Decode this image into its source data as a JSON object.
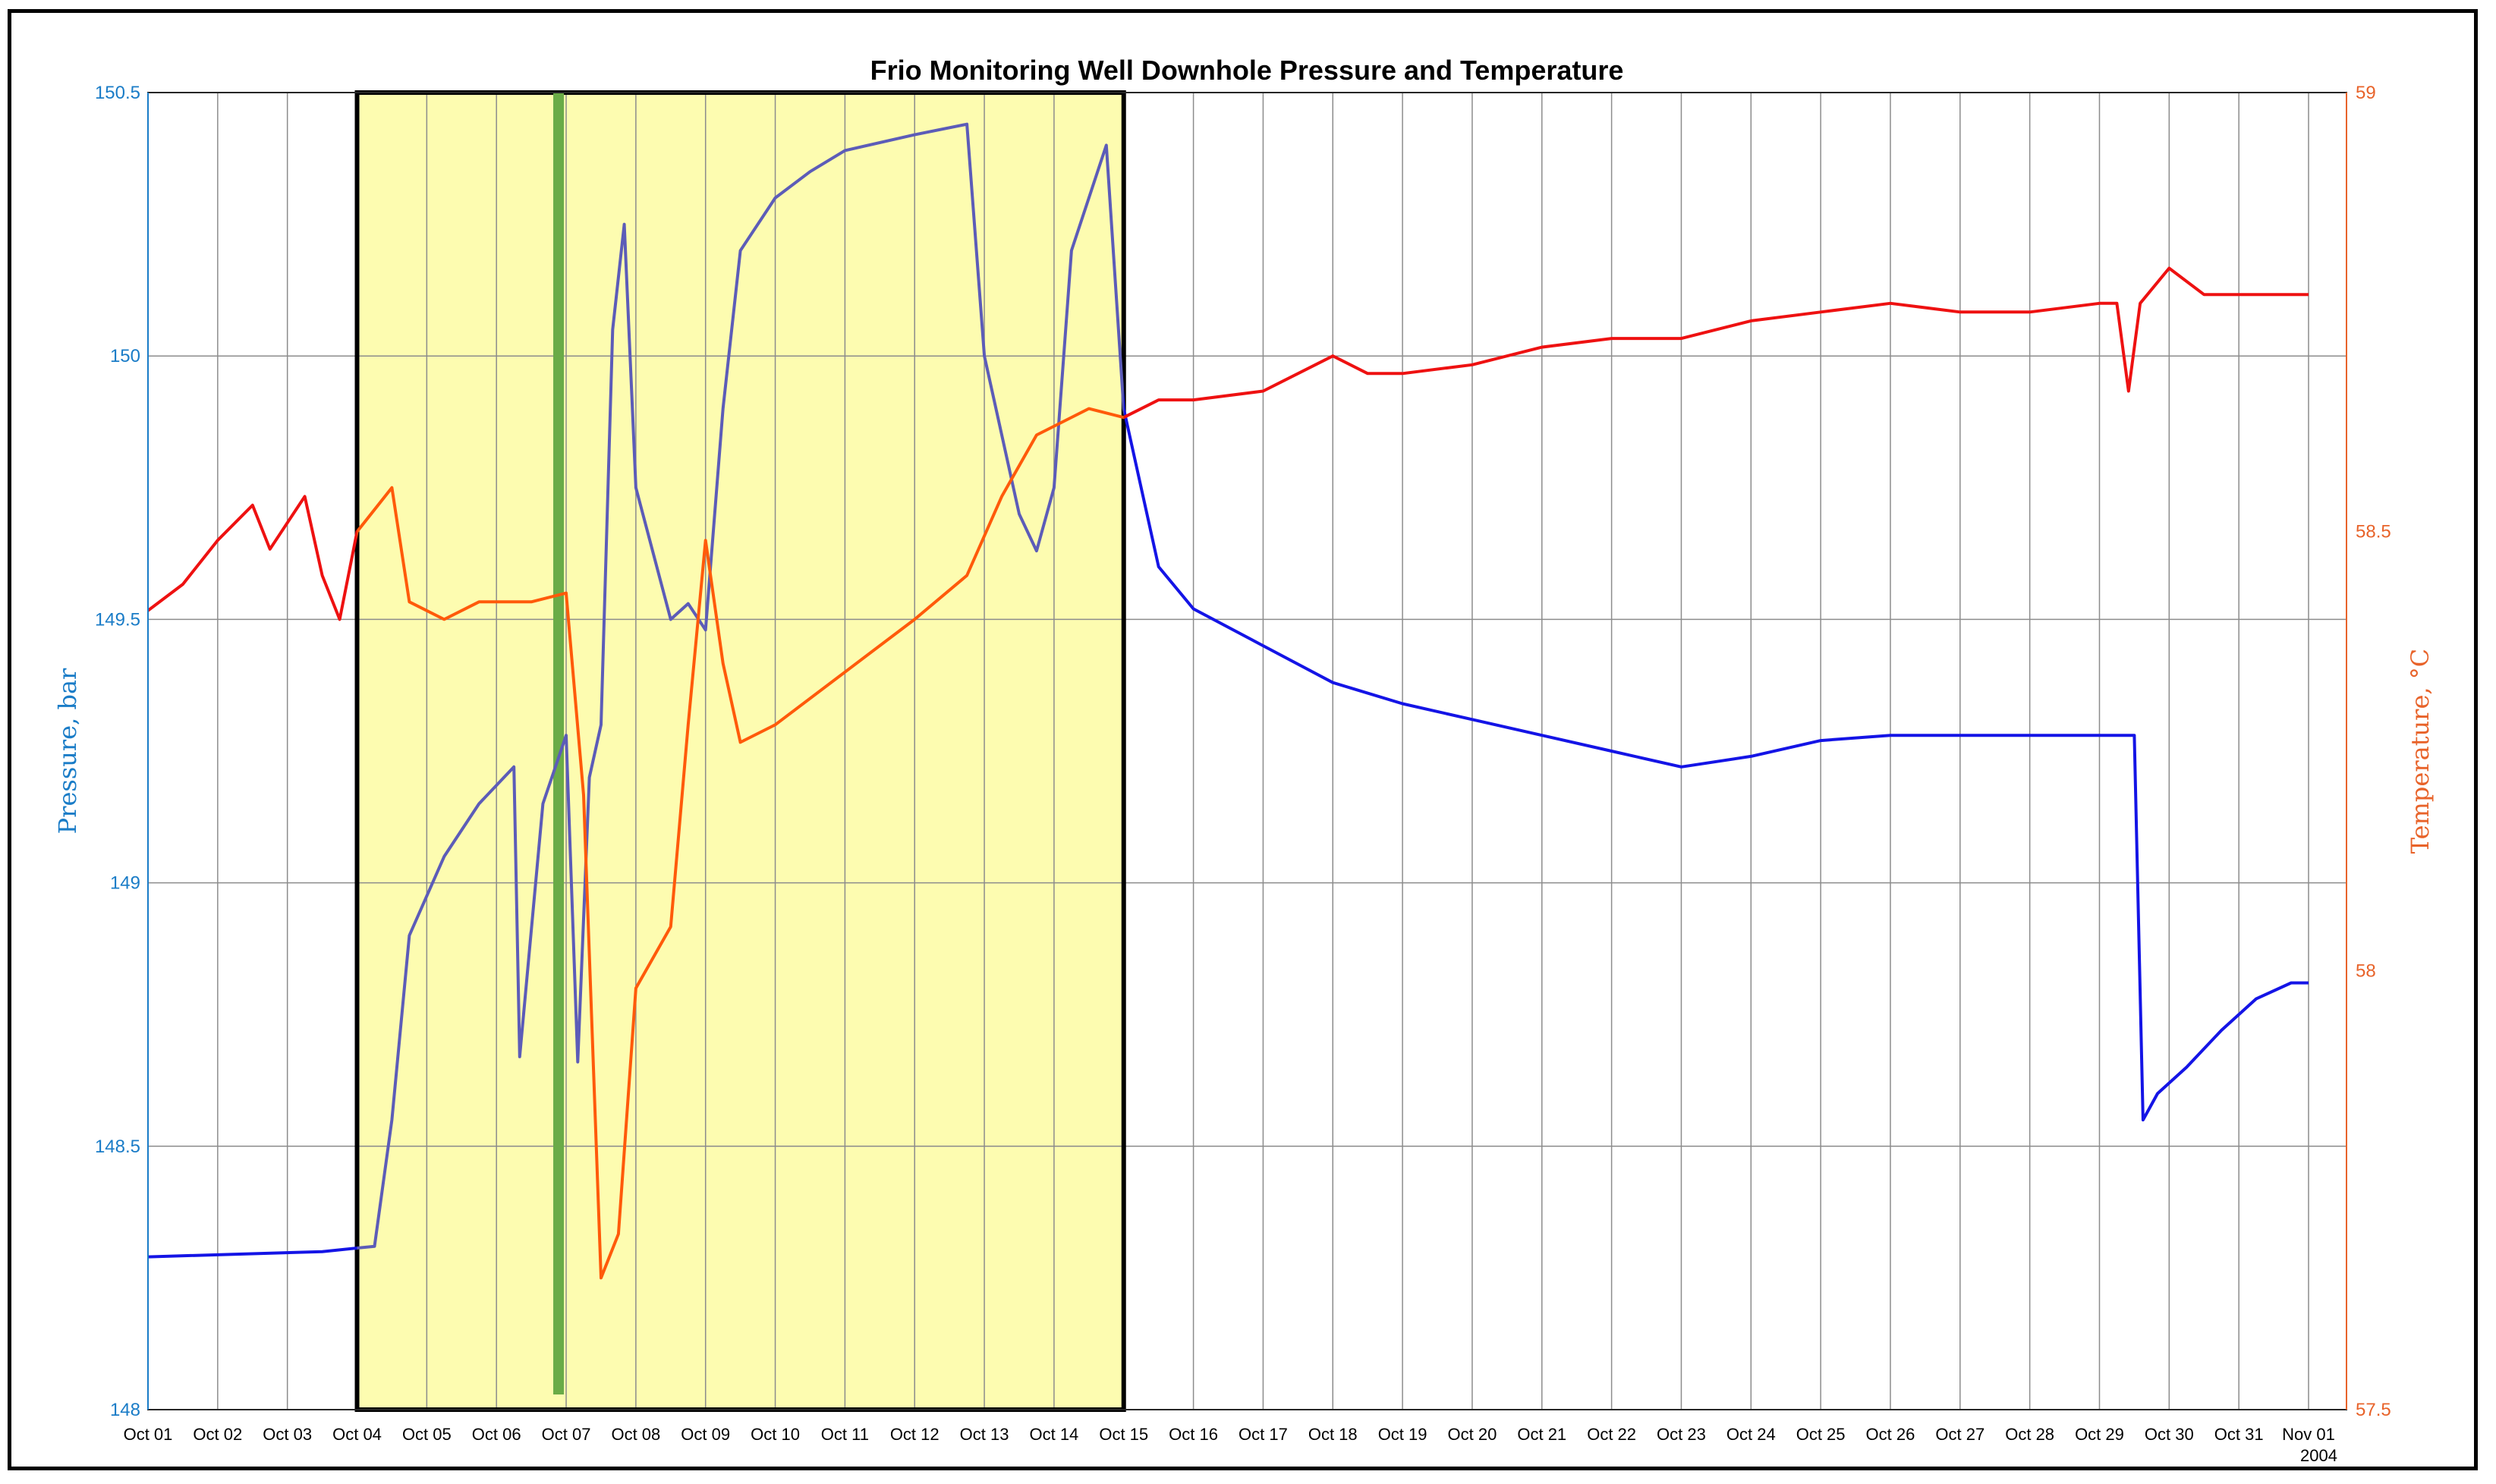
{
  "chart_data": {
    "type": "line",
    "title": "Frio Monitoring Well Downhole Pressure and Temperature",
    "xlabel": "",
    "year_label": "2004",
    "x_ticks": [
      "Oct 01",
      "Oct 02",
      "Oct 03",
      "Oct 04",
      "Oct 05",
      "Oct 06",
      "Oct 07",
      "Oct 08",
      "Oct 09",
      "Oct 10",
      "Oct 11",
      "Oct 12",
      "Oct 13",
      "Oct 14",
      "Oct 15",
      "Oct 16",
      "Oct 17",
      "Oct 18",
      "Oct 19",
      "Oct 20",
      "Oct 21",
      "Oct 22",
      "Oct 23",
      "Oct 24",
      "Oct 25",
      "Oct 26",
      "Oct 27",
      "Oct 28",
      "Oct 29",
      "Oct 30",
      "Oct 31",
      "Nov 01"
    ],
    "x_range": [
      "2004-10-01",
      "2004-11-01"
    ],
    "y_left": {
      "label": "Pressure, bar",
      "range": [
        148,
        150.5
      ],
      "ticks": [
        "148",
        "148.5",
        "149",
        "149.5",
        "150",
        "150.5"
      ]
    },
    "y_right": {
      "label": "Temperature, °C",
      "range": [
        57.5,
        59
      ],
      "ticks": [
        "57.5",
        "58",
        "58.5",
        "59"
      ]
    },
    "grid": true,
    "highlight": {
      "from": "2004-10-04",
      "to": "2004-10-15",
      "color": "#fdfcb0"
    },
    "marker_line": {
      "at": "2004-10-07",
      "color": "#6aab47"
    },
    "colors": {
      "pressure": "#1414e6",
      "pressure_highlight": "#5c5cb8",
      "temperature": "#ee1111",
      "temperature_highlight": "#ff5a0a",
      "left_axis": "#1a7cc7",
      "right_axis": "#e8632a"
    },
    "series": [
      {
        "axis": "left",
        "points": [
          [
            "2004-10-01T00:00",
            148.29
          ],
          [
            "2004-10-03T12:00",
            148.3
          ],
          [
            "2004-10-04T06:00",
            148.31
          ],
          [
            "2004-10-04T12:00",
            148.55
          ],
          [
            "2004-10-04T18:00",
            148.9
          ],
          [
            "2004-10-05T06:00",
            149.05
          ],
          [
            "2004-10-05T18:00",
            149.15
          ],
          [
            "2004-10-06T06:00",
            149.22
          ],
          [
            "2004-10-06T08:00",
            148.67
          ],
          [
            "2004-10-06T16:00",
            149.15
          ],
          [
            "2004-10-07T00:00",
            149.28
          ],
          [
            "2004-10-07T04:00",
            148.66
          ],
          [
            "2004-10-07T08:00",
            149.2
          ],
          [
            "2004-10-07T12:00",
            149.3
          ],
          [
            "2004-10-07T16:00",
            150.05
          ],
          [
            "2004-10-07T20:00",
            150.25
          ],
          [
            "2004-10-08T00:00",
            149.75
          ],
          [
            "2004-10-08T12:00",
            149.5
          ],
          [
            "2004-10-08T18:00",
            149.53
          ],
          [
            "2004-10-09T00:00",
            149.48
          ],
          [
            "2004-10-09T06:00",
            149.9
          ],
          [
            "2004-10-09T12:00",
            150.2
          ],
          [
            "2004-10-10T00:00",
            150.3
          ],
          [
            "2004-10-10T12:00",
            150.35
          ],
          [
            "2004-10-11T00:00",
            150.39
          ],
          [
            "2004-10-12T00:00",
            150.42
          ],
          [
            "2004-10-12T18:00",
            150.44
          ],
          [
            "2004-10-13T00:00",
            150.0
          ],
          [
            "2004-10-13T12:00",
            149.7
          ],
          [
            "2004-10-13T18:00",
            149.63
          ],
          [
            "2004-10-14T00:00",
            149.75
          ],
          [
            "2004-10-14T06:00",
            150.2
          ],
          [
            "2004-10-14T18:00",
            150.4
          ],
          [
            "2004-10-15T00:00",
            149.9
          ],
          [
            "2004-10-15T12:00",
            149.6
          ],
          [
            "2004-10-16T00:00",
            149.52
          ],
          [
            "2004-10-17T00:00",
            149.45
          ],
          [
            "2004-10-18T00:00",
            149.38
          ],
          [
            "2004-10-19T00:00",
            149.34
          ],
          [
            "2004-10-20T00:00",
            149.31
          ],
          [
            "2004-10-21T00:00",
            149.28
          ],
          [
            "2004-10-22T00:00",
            149.25
          ],
          [
            "2004-10-23T00:00",
            149.22
          ],
          [
            "2004-10-24T00:00",
            149.24
          ],
          [
            "2004-10-25T00:00",
            149.27
          ],
          [
            "2004-10-26T00:00",
            149.28
          ],
          [
            "2004-10-27T00:00",
            149.28
          ],
          [
            "2004-10-28T00:00",
            149.28
          ],
          [
            "2004-10-29T12:00",
            149.28
          ],
          [
            "2004-10-29T15:00",
            148.55
          ],
          [
            "2004-10-29T20:00",
            148.6
          ],
          [
            "2004-10-30T06:00",
            148.65
          ],
          [
            "2004-10-30T18:00",
            148.72
          ],
          [
            "2004-10-31T06:00",
            148.78
          ],
          [
            "2004-10-31T18:00",
            148.81
          ],
          [
            "2004-11-01T00:00",
            148.81
          ]
        ]
      },
      {
        "axis": "right",
        "points": [
          [
            "2004-10-01T00:00",
            58.41
          ],
          [
            "2004-10-01T12:00",
            58.44
          ],
          [
            "2004-10-02T00:00",
            58.49
          ],
          [
            "2004-10-02T12:00",
            58.53
          ],
          [
            "2004-10-02T18:00",
            58.48
          ],
          [
            "2004-10-03T06:00",
            58.54
          ],
          [
            "2004-10-03T12:00",
            58.45
          ],
          [
            "2004-10-03T18:00",
            58.4
          ],
          [
            "2004-10-04T00:00",
            58.5
          ],
          [
            "2004-10-04T12:00",
            58.55
          ],
          [
            "2004-10-04T18:00",
            58.42
          ],
          [
            "2004-10-05T06:00",
            58.4
          ],
          [
            "2004-10-05T18:00",
            58.42
          ],
          [
            "2004-10-06T12:00",
            58.42
          ],
          [
            "2004-10-07T00:00",
            58.43
          ],
          [
            "2004-10-07T06:00",
            58.2
          ],
          [
            "2004-10-07T12:00",
            57.65
          ],
          [
            "2004-10-07T18:00",
            57.7
          ],
          [
            "2004-10-08T00:00",
            57.98
          ],
          [
            "2004-10-08T12:00",
            58.05
          ],
          [
            "2004-10-08T18:00",
            58.28
          ],
          [
            "2004-10-09T00:00",
            58.49
          ],
          [
            "2004-10-09T06:00",
            58.35
          ],
          [
            "2004-10-09T12:00",
            58.26
          ],
          [
            "2004-10-10T00:00",
            58.28
          ],
          [
            "2004-10-11T00:00",
            58.34
          ],
          [
            "2004-10-12T00:00",
            58.4
          ],
          [
            "2004-10-12T18:00",
            58.45
          ],
          [
            "2004-10-13T06:00",
            58.54
          ],
          [
            "2004-10-13T18:00",
            58.61
          ],
          [
            "2004-10-14T12:00",
            58.64
          ],
          [
            "2004-10-15T00:00",
            58.63
          ],
          [
            "2004-10-15T12:00",
            58.65
          ],
          [
            "2004-10-16T00:00",
            58.65
          ],
          [
            "2004-10-17T00:00",
            58.66
          ],
          [
            "2004-10-18T00:00",
            58.7
          ],
          [
            "2004-10-18T12:00",
            58.68
          ],
          [
            "2004-10-19T00:00",
            58.68
          ],
          [
            "2004-10-20T00:00",
            58.69
          ],
          [
            "2004-10-21T00:00",
            58.71
          ],
          [
            "2004-10-22T00:00",
            58.72
          ],
          [
            "2004-10-23T00:00",
            58.72
          ],
          [
            "2004-10-24T00:00",
            58.74
          ],
          [
            "2004-10-25T00:00",
            58.75
          ],
          [
            "2004-10-26T00:00",
            58.76
          ],
          [
            "2004-10-27T00:00",
            58.75
          ],
          [
            "2004-10-28T00:00",
            58.75
          ],
          [
            "2004-10-29T00:00",
            58.76
          ],
          [
            "2004-10-29T06:00",
            58.76
          ],
          [
            "2004-10-29T10:00",
            58.66
          ],
          [
            "2004-10-29T14:00",
            58.76
          ],
          [
            "2004-10-30T00:00",
            58.8
          ],
          [
            "2004-10-30T12:00",
            58.77
          ],
          [
            "2004-10-31T00:00",
            58.77
          ],
          [
            "2004-11-01T00:00",
            58.77
          ]
        ]
      }
    ]
  }
}
